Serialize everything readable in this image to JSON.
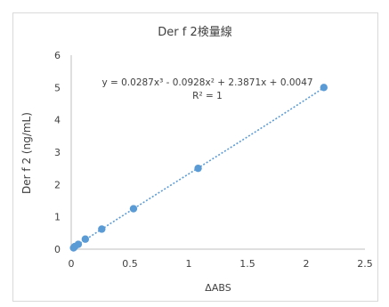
{
  "chart_data": {
    "type": "scatter",
    "title": "Der f 2検量線",
    "xlabel": "ΔABS",
    "ylabel": "Der f 2 (ng/mL)",
    "xlim": [
      0,
      2.5
    ],
    "ylim": [
      0,
      6
    ],
    "x_ticks": [
      "0",
      "0.5",
      "1",
      "1.5",
      "2",
      "2.5"
    ],
    "y_ticks": [
      "0",
      "1",
      "2",
      "3",
      "4",
      "5",
      "6"
    ],
    "grid": false,
    "legend": "none",
    "trendline": "polynomial-3",
    "equation": "y = 0.0287x³ - 0.0928x² + 2.3871x + 0.0047",
    "r_squared": "R² = 1",
    "coefficients": [
      0.0287,
      -0.0928,
      2.3871,
      0.0047
    ],
    "points": [
      {
        "x": 0.02,
        "y": 0.04
      },
      {
        "x": 0.03,
        "y": 0.08
      },
      {
        "x": 0.06,
        "y": 0.15
      },
      {
        "x": 0.12,
        "y": 0.31
      },
      {
        "x": 0.26,
        "y": 0.62
      },
      {
        "x": 0.53,
        "y": 1.25
      },
      {
        "x": 1.08,
        "y": 2.5
      },
      {
        "x": 2.15,
        "y": 5.0
      }
    ],
    "colors": {
      "marker": "#5b9bd5",
      "trendline": "#5b9bd5",
      "axis": "#bfbfbf",
      "text": "#404040",
      "frame": "#d9d9d9"
    }
  }
}
